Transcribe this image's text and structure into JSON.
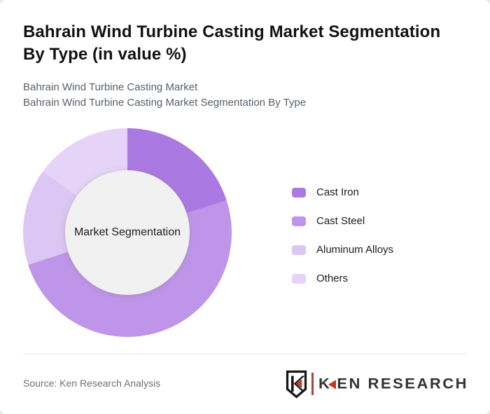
{
  "header": {
    "title": "Bahrain Wind Turbine Casting Market Segmentation By Type (in value %)",
    "subtitle_line1": "Bahrain Wind Turbine Casting Market",
    "subtitle_line2": "Bahrain Wind Turbine Casting Market Segmentation By Type"
  },
  "chart_data": {
    "type": "pie",
    "donut": true,
    "title": "Bahrain Wind Turbine Casting Market Segmentation By Type (in value %)",
    "center_label": "Market Segmentation",
    "categories": [
      "Cast Iron",
      "Cast Steel",
      "Aluminum Alloys",
      "Others"
    ],
    "values": [
      20,
      50,
      15,
      15
    ],
    "unit": "percent of market value",
    "start_angle_deg": 0,
    "legend_position": "right",
    "colors": [
      "#ab79e2",
      "#bf95e9",
      "#dcc6f3",
      "#e5d4f7"
    ],
    "inner_circle_color": "#f1f1f2",
    "outer_radius": 149,
    "inner_radius": 89
  },
  "footer": {
    "source": "Source: Ken Research Analysis",
    "logo_k": "K",
    "logo_rest": "EN RESEARCH"
  }
}
